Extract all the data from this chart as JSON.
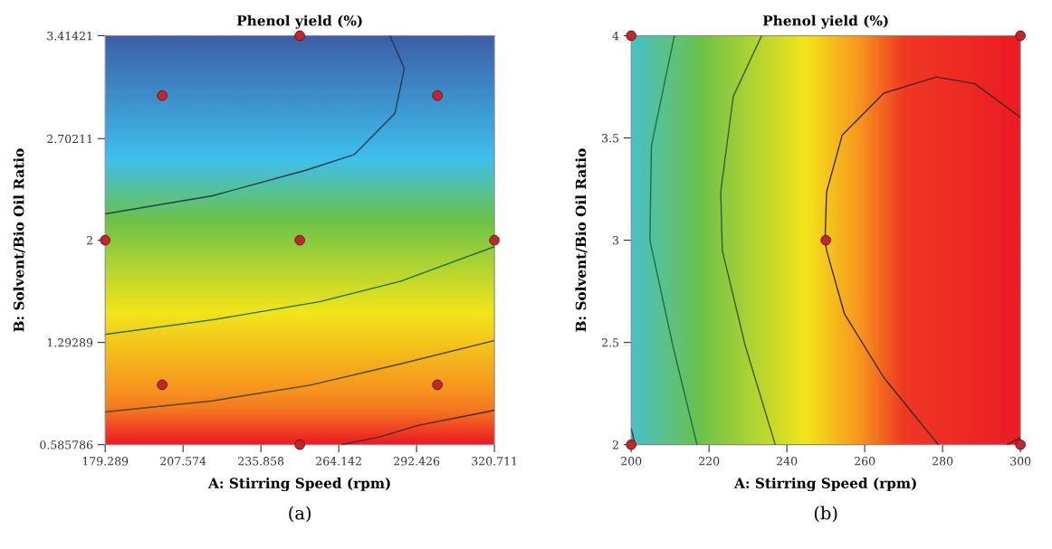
{
  "chart_data": [
    {
      "type": "scatter",
      "title": "Phenol yield (%)",
      "xlabel": "A: Stirring Speed (rpm)",
      "ylabel": "B: Solvent/Bio Oil Ratio",
      "annotations": [
        "(a)"
      ],
      "xlim": [
        179.289,
        320.711
      ],
      "ylim": [
        0.585786,
        3.41421
      ],
      "xticks": [
        179.289,
        207.574,
        235.858,
        264.142,
        292.426,
        320.711
      ],
      "yticks": [
        0.585786,
        1.29289,
        2,
        2.70211,
        3.41421
      ],
      "grid": false,
      "legend": false,
      "series": [
        {
          "type": "scatter",
          "color": "#c0272d",
          "marker": "circle",
          "x": [
            250,
            200,
            300,
            179.289,
            250,
            320.711,
            200,
            300,
            250
          ],
          "values": [
            3.41421,
            3,
            3,
            2,
            2,
            2,
            1,
            1,
            0.585786
          ]
        },
        {
          "type": "line",
          "color": "#1f3f4f",
          "marker": "none",
          "x": [
            282.73,
            287.98,
            284.58,
            269.76,
            252.47,
            218.2,
            179.29
          ],
          "values": [
            3.414,
            3.188,
            2.878,
            2.592,
            2.485,
            2.307,
            2.182
          ]
        },
        {
          "type": "line",
          "color": "#1d6e46",
          "marker": "none",
          "x": [
            179.29,
            218.2,
            257.1,
            286.7,
            320.71
          ],
          "values": [
            1.348,
            1.449,
            1.574,
            1.717,
            1.955
          ]
        },
        {
          "type": "line",
          "color": "#4a4a2a",
          "marker": "none",
          "x": [
            179.29,
            218.2,
            253.7,
            286.7,
            320.71
          ],
          "values": [
            0.812,
            0.889,
            0.997,
            1.145,
            1.306
          ]
        },
        {
          "type": "line",
          "color": "#4a2a2a",
          "marker": "none",
          "x": [
            265.13,
            279.0,
            292.6,
            320.71
          ],
          "values": [
            0.586,
            0.639,
            0.717,
            0.824
          ]
        }
      ]
    },
    {
      "type": "scatter",
      "title": "Phenol yield (%)",
      "xlabel": "A: Stirring Speed (rpm)",
      "ylabel": "B: Solvent/Bio Oil Ratio",
      "annotations": [
        "(b)"
      ],
      "xlim": [
        200,
        300
      ],
      "ylim": [
        2,
        4
      ],
      "xticks": [
        200,
        220,
        240,
        260,
        280,
        300
      ],
      "yticks": [
        2,
        2.5,
        3,
        3.5,
        4
      ],
      "grid": false,
      "legend": false,
      "series": [
        {
          "type": "scatter",
          "color": "#c0272d",
          "marker": "circle",
          "x": [
            200,
            300,
            250,
            200,
            300
          ],
          "values": [
            4,
            4,
            3,
            2,
            2
          ]
        },
        {
          "type": "line",
          "color": "#1d6e46",
          "marker": "none",
          "x": [
            211.1,
            205.2,
            204.8,
            210.7,
            216.9
          ],
          "values": [
            4.0,
            3.462,
            3.0,
            2.484,
            2.0
          ]
        },
        {
          "type": "line",
          "color": "#3a5a3a",
          "marker": "none",
          "x": [
            233.5,
            226.2,
            223.0,
            223.4,
            229.3,
            237.0
          ],
          "values": [
            4.0,
            3.702,
            3.236,
            2.95,
            2.484,
            2.0
          ]
        },
        {
          "type": "line",
          "color": "#3a2a2a",
          "marker": "none",
          "x": [
            300,
            288.3,
            278.4,
            264.9,
            254.2,
            250.2,
            249.8,
            250.2,
            254.8,
            264.9,
            278.9
          ],
          "values": [
            3.601,
            3.765,
            3.798,
            3.719,
            3.513,
            3.236,
            3.0,
            2.95,
            2.639,
            2.328,
            2.0
          ]
        },
        {
          "type": "line",
          "color": "#1f3f4f",
          "marker": "none",
          "x": [
            200,
            201
          ],
          "values": [
            2.08,
            2.0
          ]
        },
        {
          "type": "line",
          "color": "#3a2a2a",
          "marker": "none",
          "x": [
            296.6,
            300
          ],
          "values": [
            2.0,
            2.034
          ]
        }
      ]
    }
  ]
}
